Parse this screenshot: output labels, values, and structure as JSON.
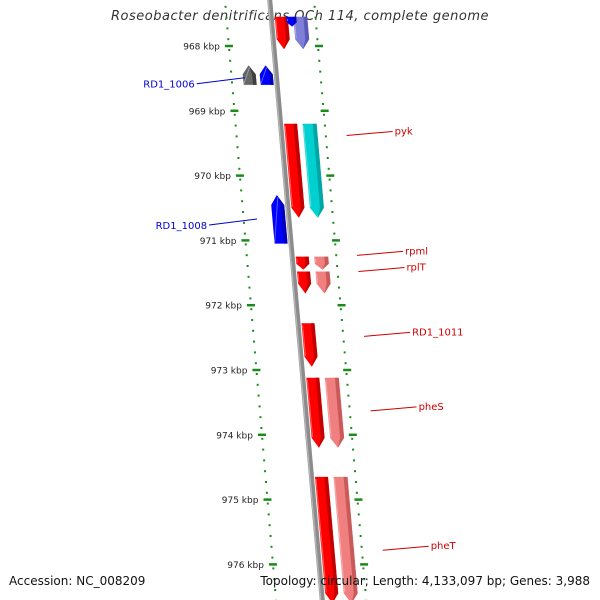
{
  "title": "Roseobacter denitrificans OCh 114, complete genome",
  "footer": {
    "accession": "Accession: NC_008209",
    "summary": "Topology: circular; Length: 4,133,097 bp; Genes: 3,988"
  },
  "colors": {
    "tick_green": "#1a8a1a",
    "backbone": "#8c8c8c",
    "label_blue": "#0000cc",
    "label_red": "#cc0000"
  },
  "ticks": [
    {
      "label": "968 kbp",
      "kbp": 968
    },
    {
      "label": "969 kbp",
      "kbp": 969
    },
    {
      "label": "970 kbp",
      "kbp": 970
    },
    {
      "label": "971 kbp",
      "kbp": 971
    },
    {
      "label": "972 kbp",
      "kbp": 972
    },
    {
      "label": "973 kbp",
      "kbp": 973
    },
    {
      "label": "974 kbp",
      "kbp": 974
    },
    {
      "label": "975 kbp",
      "kbp": 975
    },
    {
      "label": "976 kbp",
      "kbp": 976
    }
  ],
  "features": [
    {
      "id": "f-top-red",
      "strand": "+",
      "start_kbp": 967.55,
      "end_kbp": 968.05,
      "color": "#ff0000",
      "shadow": "#b30000"
    },
    {
      "id": "f-top-purple",
      "strand": "+",
      "lane": "outer",
      "start_kbp": 967.55,
      "end_kbp": 968.05,
      "color": "#7f7fd9",
      "shadow": "#5050b0"
    },
    {
      "id": "f-top-blue-sm",
      "strand": "+",
      "lane": "mid",
      "start_kbp": 967.55,
      "end_kbp": 967.7,
      "color": "#0000ff",
      "shadow": "#0000aa"
    },
    {
      "id": "f-1006-gray",
      "strand": "-",
      "lane": "far",
      "start_kbp": 968.3,
      "end_kbp": 968.6,
      "color": "#666666",
      "shadow": "#333333"
    },
    {
      "id": "f-1006-blue",
      "strand": "-",
      "lane": "near",
      "start_kbp": 968.3,
      "end_kbp": 968.6,
      "color": "#0000ff",
      "shadow": "#0000aa"
    },
    {
      "id": "f-pyk-red",
      "strand": "+",
      "lane": "inner",
      "start_kbp": 969.2,
      "end_kbp": 970.65,
      "color": "#ff0000",
      "shadow": "#b30000"
    },
    {
      "id": "f-pyk-cyan",
      "strand": "+",
      "lane": "outer",
      "start_kbp": 969.2,
      "end_kbp": 970.65,
      "color": "#00d0d0",
      "shadow": "#009a9a"
    },
    {
      "id": "f-1008",
      "strand": "-",
      "lane": "near",
      "start_kbp": 970.3,
      "end_kbp": 971.05,
      "color": "#0000ff",
      "shadow": "#0000aa"
    },
    {
      "id": "f-rpml-red",
      "strand": "+",
      "lane": "inner",
      "start_kbp": 971.25,
      "end_kbp": 971.45,
      "color": "#ff0000",
      "shadow": "#b30000"
    },
    {
      "id": "f-rpml-pink",
      "strand": "+",
      "lane": "outer",
      "start_kbp": 971.25,
      "end_kbp": 971.45,
      "color": "#f08080",
      "shadow": "#c05050"
    },
    {
      "id": "f-rplT-red",
      "strand": "+",
      "lane": "inner",
      "start_kbp": 971.48,
      "end_kbp": 971.82,
      "color": "#ff0000",
      "shadow": "#b30000"
    },
    {
      "id": "f-rplT-pink",
      "strand": "+",
      "lane": "outer",
      "start_kbp": 971.48,
      "end_kbp": 971.82,
      "color": "#f08080",
      "shadow": "#c05050"
    },
    {
      "id": "f-RD1_1011",
      "strand": "+",
      "lane": "inner",
      "start_kbp": 972.28,
      "end_kbp": 972.95,
      "color": "#ff0000",
      "shadow": "#b30000"
    },
    {
      "id": "f-pheS-red",
      "strand": "+",
      "lane": "inner",
      "start_kbp": 973.12,
      "end_kbp": 974.2,
      "color": "#ff0000",
      "shadow": "#b30000"
    },
    {
      "id": "f-pheS-pink",
      "strand": "+",
      "lane": "outer",
      "start_kbp": 973.12,
      "end_kbp": 974.2,
      "color": "#f08080",
      "shadow": "#c05050"
    },
    {
      "id": "f-pheT-red",
      "strand": "+",
      "lane": "inner",
      "start_kbp": 974.65,
      "end_kbp": 976.6,
      "color": "#ff0000",
      "shadow": "#b30000"
    },
    {
      "id": "f-pheT-pink",
      "strand": "+",
      "lane": "outer",
      "start_kbp": 974.65,
      "end_kbp": 976.6,
      "color": "#f08080",
      "shadow": "#c05050"
    }
  ],
  "labels": [
    {
      "text": "RD1_1006",
      "side": "left",
      "kbp": 968.52,
      "color": "#0000cc"
    },
    {
      "text": "pyk",
      "side": "right",
      "kbp": 969.35,
      "color": "#cc0000"
    },
    {
      "text": "RD1_1008",
      "side": "left",
      "kbp": 970.7,
      "color": "#0000cc"
    },
    {
      "text": "rpml",
      "side": "right",
      "kbp": 971.2,
      "color": "#cc0000"
    },
    {
      "text": "rplT",
      "side": "right",
      "kbp": 971.45,
      "color": "#cc0000"
    },
    {
      "text": "RD1_1011",
      "side": "right",
      "kbp": 972.45,
      "color": "#cc0000"
    },
    {
      "text": "pheS",
      "side": "right",
      "kbp": 973.6,
      "color": "#cc0000"
    },
    {
      "text": "pheT",
      "side": "right",
      "kbp": 975.75,
      "color": "#cc0000"
    }
  ]
}
